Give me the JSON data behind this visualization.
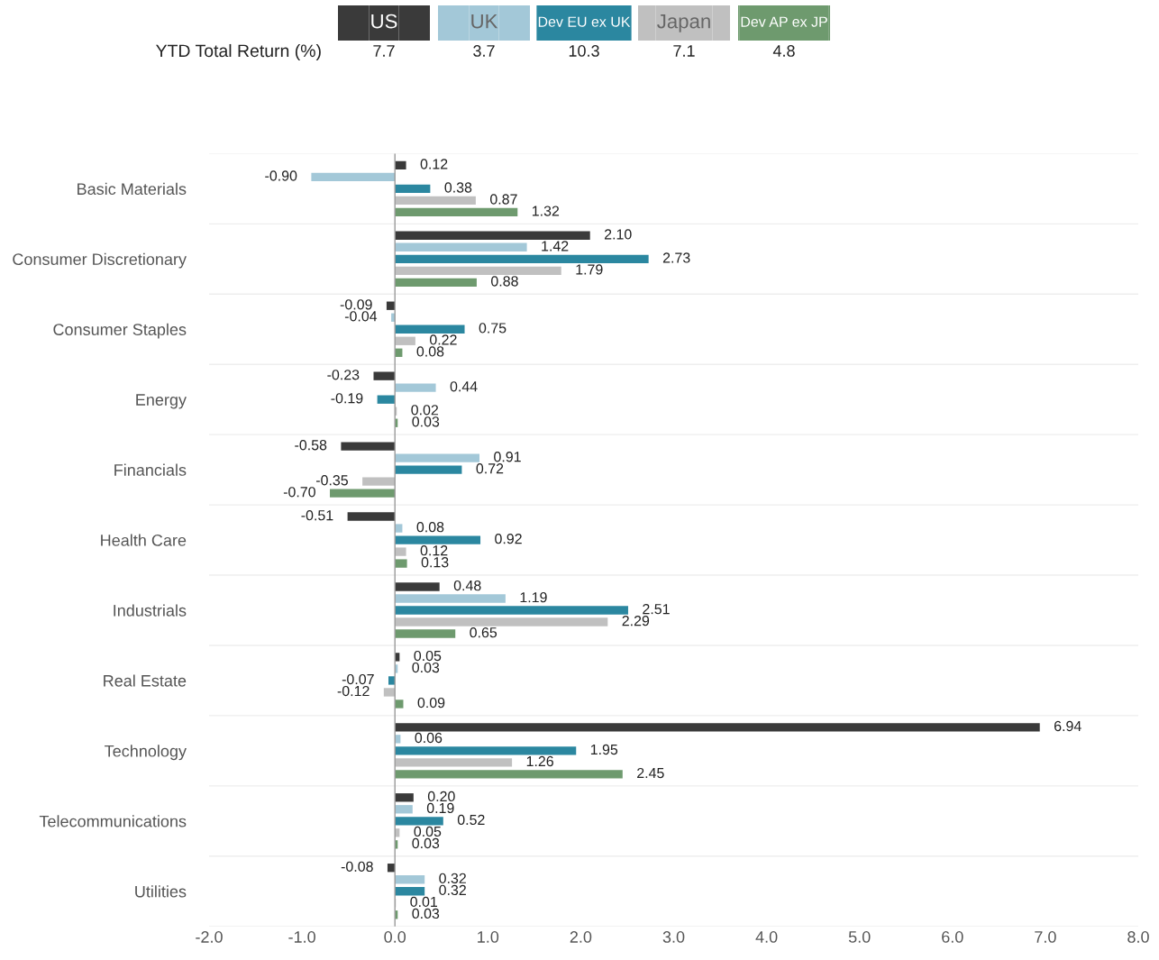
{
  "chart_data": {
    "type": "bar",
    "orientation": "horizontal",
    "categories": [
      "Basic Materials",
      "Consumer Discretionary",
      "Consumer Staples",
      "Energy",
      "Financials",
      "Health Care",
      "Industrials",
      "Real Estate",
      "Technology",
      "Telecommunications",
      "Utilities"
    ],
    "series": [
      {
        "name": "US",
        "color": "#3a3a3a",
        "values": [
          0.12,
          2.1,
          -0.09,
          -0.23,
          -0.58,
          -0.51,
          0.48,
          0.05,
          6.94,
          0.2,
          -0.08
        ],
        "value_labels": [
          "0.12",
          "2.10",
          "-0.09",
          "-0.23",
          "-0.58",
          "-0.51",
          "0.48",
          "0.05",
          "6.94",
          "0.20",
          "-0.08"
        ]
      },
      {
        "name": "UK",
        "color": "#a3c8d8",
        "values": [
          -0.9,
          1.42,
          -0.04,
          0.44,
          0.91,
          0.08,
          1.19,
          0.03,
          0.06,
          0.19,
          0.32
        ],
        "value_labels": [
          "-0.90",
          "1.42",
          "-0.04",
          "0.44",
          "0.91",
          "0.08",
          "1.19",
          "0.03",
          "0.06",
          "0.19",
          "0.32"
        ]
      },
      {
        "name": "Dev EU ex UK",
        "color": "#2b87a0",
        "values": [
          0.38,
          2.73,
          0.75,
          -0.19,
          0.72,
          0.92,
          2.51,
          -0.07,
          1.95,
          0.52,
          0.32
        ],
        "value_labels": [
          "0.38",
          "2.73",
          "0.75",
          "-0.19",
          "0.72",
          "0.92",
          "2.51",
          "-0.07",
          "1.95",
          "0.52",
          "0.32"
        ]
      },
      {
        "name": "Japan",
        "color": "#c0c0c0",
        "values": [
          0.87,
          1.79,
          0.22,
          0.02,
          -0.35,
          0.12,
          2.29,
          -0.12,
          1.26,
          0.05,
          0.01
        ],
        "value_labels": [
          "0.87",
          "1.79",
          "0.22",
          "0.02",
          "-0.35",
          "0.12",
          "2.29",
          "-0.12",
          "1.26",
          "0.05",
          "0.01"
        ]
      },
      {
        "name": "Dev AP ex JP",
        "color": "#6e9a6e",
        "values": [
          1.32,
          0.88,
          0.08,
          0.03,
          -0.7,
          0.13,
          0.65,
          0.09,
          2.45,
          0.03,
          0.03
        ],
        "value_labels": [
          "1.32",
          "0.88",
          "0.08",
          "0.03",
          "-0.70",
          "0.13",
          "0.65",
          "0.09",
          "2.45",
          "0.03",
          "0.03"
        ]
      }
    ],
    "xlim": [
      -2,
      8
    ],
    "xticks": [
      {
        "value": -2,
        "label": "-2.0"
      },
      {
        "value": -1,
        "label": "-1.0"
      },
      {
        "value": 0,
        "label": "0.0"
      },
      {
        "value": 1,
        "label": "1.0"
      },
      {
        "value": 2,
        "label": "2.0"
      },
      {
        "value": 3,
        "label": "3.0"
      },
      {
        "value": 4,
        "label": "4.0"
      },
      {
        "value": 5,
        "label": "5.0"
      },
      {
        "value": 6,
        "label": "6.0"
      },
      {
        "value": 7,
        "label": "7.0"
      },
      {
        "value": 8,
        "label": "8.0"
      }
    ],
    "ref_lines": [
      {
        "axis": "x",
        "value": 0,
        "color": "#999999"
      }
    ],
    "grid": "y",
    "legend": "top",
    "annotations": [
      "YTD Total Return (%)",
      "7.7",
      "3.7",
      "10.3",
      "7.1",
      "4.8"
    ]
  }
}
